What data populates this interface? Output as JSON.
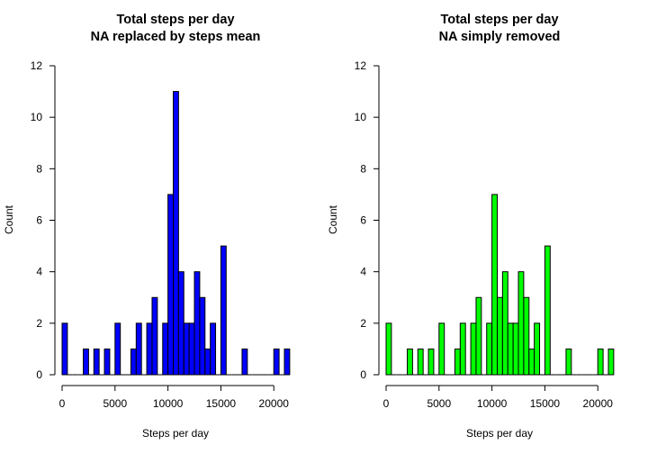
{
  "chart_data": [
    {
      "type": "bar",
      "title_line1": "Total steps per day",
      "title_line2": "NA replaced by steps mean",
      "xlabel": "Steps per day",
      "ylabel": "Count",
      "bar_color": "#0000ff",
      "bin_width": 500,
      "xlim": [
        0,
        21500
      ],
      "ylim": [
        0,
        12
      ],
      "xticks": [
        "0",
        "5000",
        "10000",
        "15000",
        "20000"
      ],
      "yticks": [
        "0",
        "2",
        "4",
        "6",
        "8",
        "10",
        "12"
      ],
      "bins": [
        0,
        500,
        1000,
        1500,
        2000,
        2500,
        3000,
        3500,
        4000,
        4500,
        5000,
        5500,
        6000,
        6500,
        7000,
        7500,
        8000,
        8500,
        9000,
        9500,
        10000,
        10500,
        11000,
        11500,
        12000,
        12500,
        13000,
        13500,
        14000,
        14500,
        15000,
        15500,
        16000,
        16500,
        17000,
        17500,
        18000,
        18500,
        19000,
        19500,
        20000,
        20500,
        21000
      ],
      "values": [
        2,
        0,
        0,
        0,
        1,
        0,
        1,
        0,
        1,
        0,
        2,
        0,
        0,
        1,
        2,
        0,
        2,
        3,
        0,
        2,
        7,
        11,
        4,
        2,
        2,
        4,
        3,
        1,
        2,
        0,
        5,
        0,
        0,
        0,
        1,
        0,
        0,
        0,
        0,
        0,
        1,
        0,
        1
      ]
    },
    {
      "type": "bar",
      "title_line1": "Total steps per day",
      "title_line2": "NA simply removed",
      "xlabel": "Steps per day",
      "ylabel": "Count",
      "bar_color": "#00ff00",
      "bin_width": 500,
      "xlim": [
        0,
        21500
      ],
      "ylim": [
        0,
        12
      ],
      "xticks": [
        "0",
        "5000",
        "10000",
        "15000",
        "20000"
      ],
      "yticks": [
        "0",
        "2",
        "4",
        "6",
        "8",
        "10",
        "12"
      ],
      "bins": [
        0,
        500,
        1000,
        1500,
        2000,
        2500,
        3000,
        3500,
        4000,
        4500,
        5000,
        5500,
        6000,
        6500,
        7000,
        7500,
        8000,
        8500,
        9000,
        9500,
        10000,
        10500,
        11000,
        11500,
        12000,
        12500,
        13000,
        13500,
        14000,
        14500,
        15000,
        15500,
        16000,
        16500,
        17000,
        17500,
        18000,
        18500,
        19000,
        19500,
        20000,
        20500,
        21000
      ],
      "values": [
        2,
        0,
        0,
        0,
        1,
        0,
        1,
        0,
        1,
        0,
        2,
        0,
        0,
        1,
        2,
        0,
        2,
        3,
        0,
        2,
        7,
        3,
        4,
        2,
        2,
        4,
        3,
        1,
        2,
        0,
        5,
        0,
        0,
        0,
        1,
        0,
        0,
        0,
        0,
        0,
        1,
        0,
        1
      ]
    }
  ]
}
